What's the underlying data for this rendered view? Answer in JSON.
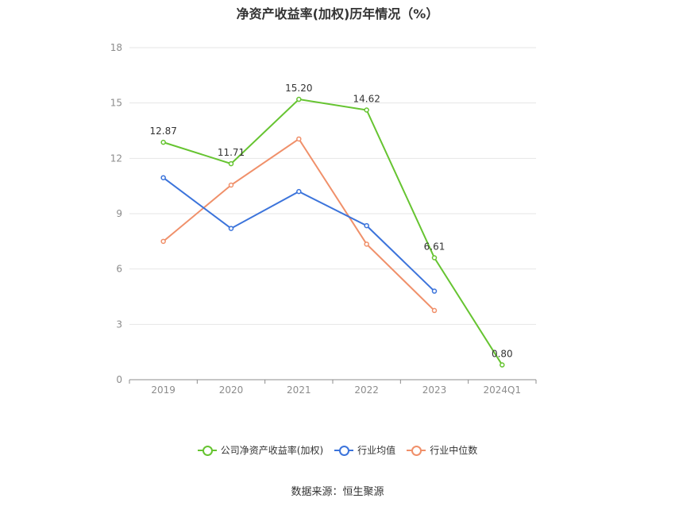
{
  "chart_data": {
    "type": "line",
    "title": "净资产收益率(加权)历年情况（%）",
    "categories": [
      "2019",
      "2020",
      "2021",
      "2022",
      "2023",
      "2024Q1"
    ],
    "yticks": [
      "0",
      "3",
      "6",
      "9",
      "12",
      "15",
      "18"
    ],
    "ylim": [
      0,
      18
    ],
    "grid": true,
    "legend_position": "bottom",
    "series": [
      {
        "name": "公司净资产收益率(加权)",
        "color": "#66c431",
        "values": [
          12.87,
          11.71,
          15.2,
          14.62,
          6.61,
          0.8
        ],
        "labels": [
          "12.87",
          "11.71",
          "15.20",
          "14.62",
          "6.61",
          "0.80"
        ]
      },
      {
        "name": "行业均值",
        "color": "#3c74db",
        "values": [
          10.95,
          8.2,
          10.2,
          8.35,
          4.8,
          null
        ]
      },
      {
        "name": "行业中位数",
        "color": "#f0906a",
        "values": [
          7.5,
          10.55,
          13.05,
          7.35,
          3.75,
          null
        ]
      }
    ]
  },
  "source": "数据来源：恒生聚源"
}
